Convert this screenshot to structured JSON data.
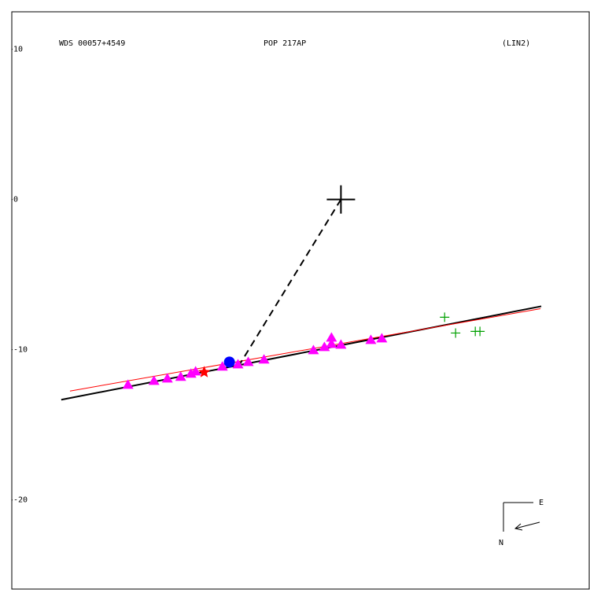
{
  "chart_data": {
    "type": "scatter",
    "annotations": [
      "WDS 00057+4549",
      "POP 217AP",
      "(LIN2)"
    ],
    "compass": {
      "east": "E",
      "north": "N"
    },
    "xlim": [
      -21.9,
      16.52
    ],
    "ylim": [
      -25.93,
      12.49
    ],
    "yticks": [
      10,
      0,
      -10,
      -20
    ],
    "series": [
      {
        "color": "#ff00ff",
        "marker": "triangle",
        "x": [
          -14.17,
          -12.44,
          -11.55,
          -10.66,
          -9.98,
          -9.67,
          -7.89,
          -6.85,
          -6.17,
          -5.12,
          -1.83,
          -1.1,
          -0.63,
          -0.63,
          0,
          1.99,
          2.72
        ],
        "y": [
          -12.34,
          -12.08,
          -11.92,
          -11.81,
          -11.6,
          -11.45,
          -11.13,
          -10.98,
          -10.82,
          -10.66,
          -10.04,
          -9.83,
          -9.2,
          -9.62,
          -9.67,
          -9.36,
          -9.25
        ]
      },
      {
        "color": "#ff0000",
        "marker": "star",
        "x": [
          -9.1
        ],
        "y": [
          -11.5
        ]
      },
      {
        "color": "#0000ff",
        "marker": "circle",
        "x": [
          -7.42
        ],
        "y": [
          -10.82
        ]
      },
      {
        "color": "#00a000",
        "marker": "plus",
        "x": [
          6.9,
          7.63,
          8.94,
          9.25
        ],
        "y": [
          -7.84,
          -8.89,
          -8.78,
          -8.78
        ]
      },
      {
        "color": "#000000",
        "marker": "bigplus",
        "x": [
          0
        ],
        "y": [
          0
        ]
      }
    ],
    "lines": [
      {
        "color": "#000000",
        "dash": false,
        "x": [
          -18.61,
          13.33
        ],
        "y": [
          -13.33,
          -7.11
        ]
      },
      {
        "color": "#ff0000",
        "dash": false,
        "x": [
          -18.03,
          13.28
        ],
        "y": [
          -12.75,
          -7.27
        ]
      },
      {
        "color": "#000000",
        "dash": true,
        "x": [
          0,
          -6.74
        ],
        "y": [
          0,
          -10.98
        ]
      }
    ]
  }
}
